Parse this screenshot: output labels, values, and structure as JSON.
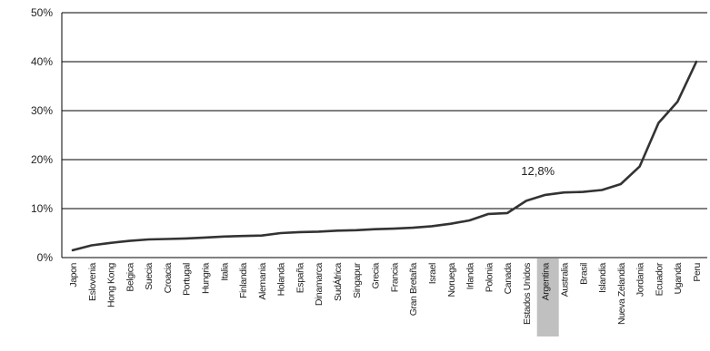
{
  "chart_data": {
    "type": "line",
    "title": "",
    "xlabel": "",
    "ylabel": "",
    "ylim": [
      0,
      50
    ],
    "y_tick_labels": [
      "0%",
      "10%",
      "20%",
      "30%",
      "40%",
      "50%"
    ],
    "grid": "horizontal",
    "legend": "none",
    "highlighted_category": "Argentina",
    "categories": [
      "Japon",
      "Eslovenia",
      "Hong Kong",
      "Belgica",
      "Suecia",
      "Croacia",
      "Portugal",
      "Hungria",
      "Italia",
      "Finlandia",
      "Alemania",
      "Holanda",
      "España",
      "Dinamarca",
      "SudÁfrica",
      "Singapur",
      "Grecia",
      "Francia",
      "Gran Bretaña",
      "Israel",
      "Noruega",
      "Irlanda",
      "Polonia",
      "Canada",
      "Estados Unidos",
      "Argentina",
      "Australia",
      "Brasil",
      "Islandia",
      "Nueva Zelandia",
      "Jordania",
      "Ecuador",
      "Uganda",
      "Peru"
    ],
    "series": [
      {
        "values": [
          1.5,
          2.5,
          3.0,
          3.4,
          3.7,
          3.8,
          3.9,
          4.1,
          4.3,
          4.4,
          4.5,
          5.0,
          5.2,
          5.3,
          5.5,
          5.6,
          5.8,
          5.9,
          6.1,
          6.4,
          6.9,
          7.6,
          8.9,
          9.1,
          11.6,
          12.8,
          13.3,
          13.4,
          13.8,
          15.0,
          18.6,
          27.5,
          31.8,
          40.0
        ]
      }
    ],
    "annotations": [
      {
        "category": "Argentina",
        "text": "12,8%"
      }
    ],
    "colors": {
      "line": "#333333",
      "grid": "#000000",
      "highlight": "#c0c0c0"
    }
  }
}
